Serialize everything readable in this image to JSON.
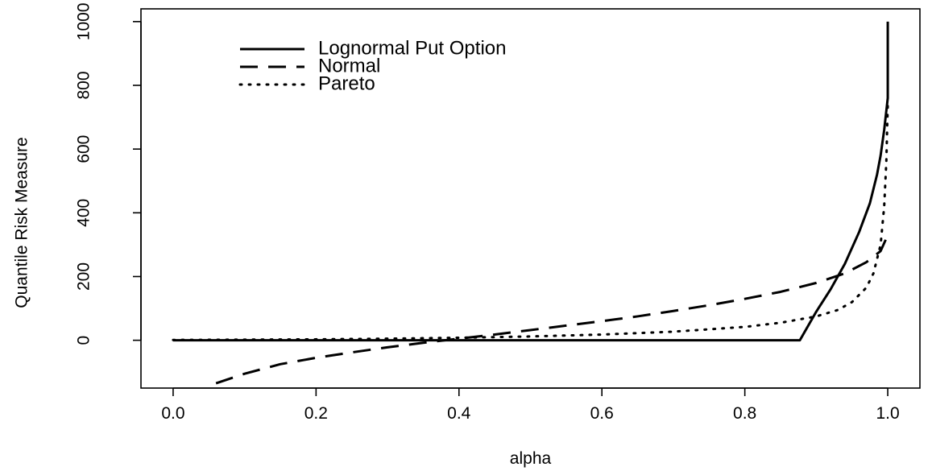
{
  "chart_data": {
    "type": "line",
    "title": "",
    "xlabel": "alpha",
    "ylabel": "Quantile Risk Measure",
    "xlim": [
      -0.045,
      1.045
    ],
    "ylim": [
      -150,
      1040
    ],
    "grid": false,
    "legend_position": "top-left",
    "x_ticks": [
      0.0,
      0.2,
      0.4,
      0.6,
      0.8,
      1.0
    ],
    "x_tick_labels": [
      "0.0",
      "0.2",
      "0.4",
      "0.6",
      "0.8",
      "1.0"
    ],
    "y_ticks": [
      0,
      200,
      400,
      600,
      800,
      1000
    ],
    "y_tick_labels": [
      "0",
      "200",
      "400",
      "600",
      "800",
      "1000"
    ],
    "series": [
      {
        "name": "Lognormal Put Option",
        "dash": "solid",
        "x": [
          0.0,
          0.2,
          0.4,
          0.6,
          0.8,
          0.877,
          0.9,
          0.92,
          0.94,
          0.96,
          0.975,
          0.985,
          0.99,
          0.995,
          0.998,
          1.0,
          1.0
        ],
        "y": [
          0,
          0,
          0,
          0,
          0,
          0,
          90,
          160,
          240,
          340,
          430,
          520,
          580,
          660,
          720,
          760,
          1000
        ]
      },
      {
        "name": "Normal",
        "dash": "dashed",
        "x": [
          0.06,
          0.1,
          0.15,
          0.2,
          0.25,
          0.3,
          0.35,
          0.4,
          0.45,
          0.5,
          0.55,
          0.6,
          0.65,
          0.7,
          0.75,
          0.8,
          0.85,
          0.9,
          0.94,
          0.97,
          0.99,
          1.0
        ],
        "y": [
          -135,
          -105,
          -75,
          -55,
          -38,
          -22,
          -8,
          5,
          18,
          32,
          46,
          60,
          75,
          92,
          110,
          130,
          152,
          180,
          210,
          245,
          280,
          330
        ]
      },
      {
        "name": "Pareto",
        "dash": "dotted",
        "x": [
          0.0,
          0.1,
          0.2,
          0.3,
          0.4,
          0.5,
          0.6,
          0.7,
          0.8,
          0.85,
          0.9,
          0.93,
          0.95,
          0.97,
          0.98,
          0.99,
          0.995,
          0.998,
          1.0
        ],
        "y": [
          1,
          2,
          3,
          5,
          8,
          12,
          18,
          27,
          42,
          55,
          75,
          95,
          120,
          165,
          210,
          300,
          420,
          560,
          740
        ]
      }
    ]
  }
}
